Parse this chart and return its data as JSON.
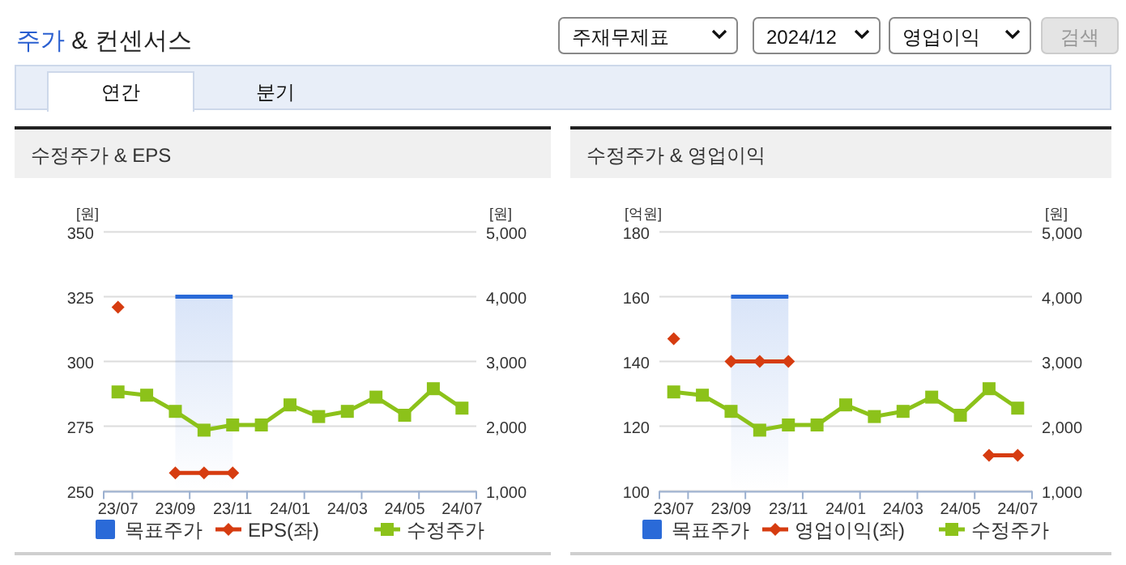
{
  "chart_data": [
    {
      "type": "other",
      "title": "주가 & 컨센서스",
      "annotations": [
        "주재무제표",
        "2024/12",
        "영업이익",
        "검색",
        "연간",
        "분기"
      ]
    },
    {
      "type": "line",
      "title": "수정주가 & EPS",
      "ylabel": "[원]",
      "y2label": "[원]",
      "categories": [
        "23/07",
        null,
        "23/09",
        null,
        "23/11",
        null,
        "24/01",
        null,
        "24/03",
        null,
        "24/05",
        null,
        "24/07"
      ],
      "series": [
        {
          "name": "목표주가",
          "type": "area",
          "axis": "y2",
          "color": "#2a6ad8",
          "values": [
            null,
            null,
            4000,
            4000,
            4000,
            null,
            null,
            null,
            null,
            null,
            null,
            null,
            null
          ]
        },
        {
          "name": "EPS(좌)",
          "type": "line",
          "marker": "diamond",
          "color": "#d63c10",
          "values": [
            321,
            null,
            257,
            257,
            257,
            null,
            null,
            null,
            null,
            null,
            null,
            null,
            null
          ]
        },
        {
          "name": "수정주가",
          "type": "line",
          "axis": "y2",
          "marker": "square",
          "color": "#8cc21a",
          "values": [
            2530,
            2480,
            2230,
            1940,
            2020,
            2020,
            2330,
            2150,
            2230,
            2450,
            2170,
            2580,
            2280
          ]
        }
      ],
      "ylim": [
        250,
        350
      ],
      "yticks": [
        250,
        275,
        300,
        325,
        350
      ],
      "y2lim": [
        1000,
        5000
      ],
      "y2ticks": [
        {
          "value": 1000,
          "label": "1,000"
        },
        {
          "value": 2000,
          "label": "2,000"
        },
        {
          "value": 3000,
          "label": "3,000"
        },
        {
          "value": 4000,
          "label": "4,000"
        },
        {
          "value": 5000,
          "label": "5,000"
        }
      ],
      "grid": "y",
      "legend": "bottom"
    },
    {
      "type": "line",
      "title": "수정주가 & 영업이익",
      "ylabel": "[억원]",
      "y2label": "[원]",
      "categories": [
        "23/07",
        null,
        "23/09",
        null,
        "23/11",
        null,
        "24/01",
        null,
        "24/03",
        null,
        "24/05",
        null,
        "24/07"
      ],
      "series": [
        {
          "name": "목표주가",
          "type": "area",
          "axis": "y2",
          "color": "#2a6ad8",
          "values": [
            null,
            null,
            4000,
            4000,
            4000,
            null,
            null,
            null,
            null,
            null,
            null,
            null,
            null
          ]
        },
        {
          "name": "영업이익(좌)",
          "type": "line",
          "marker": "diamond",
          "color": "#d63c10",
          "values": [
            147,
            null,
            140,
            140,
            140,
            null,
            null,
            null,
            null,
            null,
            null,
            111,
            111
          ]
        },
        {
          "name": "수정주가",
          "type": "line",
          "axis": "y2",
          "marker": "square",
          "color": "#8cc21a",
          "values": [
            2530,
            2480,
            2230,
            1940,
            2020,
            2020,
            2330,
            2150,
            2230,
            2450,
            2170,
            2580,
            2280
          ]
        }
      ],
      "ylim": [
        100,
        180
      ],
      "yticks": [
        100,
        120,
        140,
        160,
        180
      ],
      "y2lim": [
        1000,
        5000
      ],
      "y2ticks": [
        {
          "value": 1000,
          "label": "1,000"
        },
        {
          "value": 2000,
          "label": "2,000"
        },
        {
          "value": 3000,
          "label": "3,000"
        },
        {
          "value": 4000,
          "label": "4,000"
        },
        {
          "value": 5000,
          "label": "5,000"
        }
      ],
      "grid": "y",
      "legend": "bottom"
    }
  ]
}
